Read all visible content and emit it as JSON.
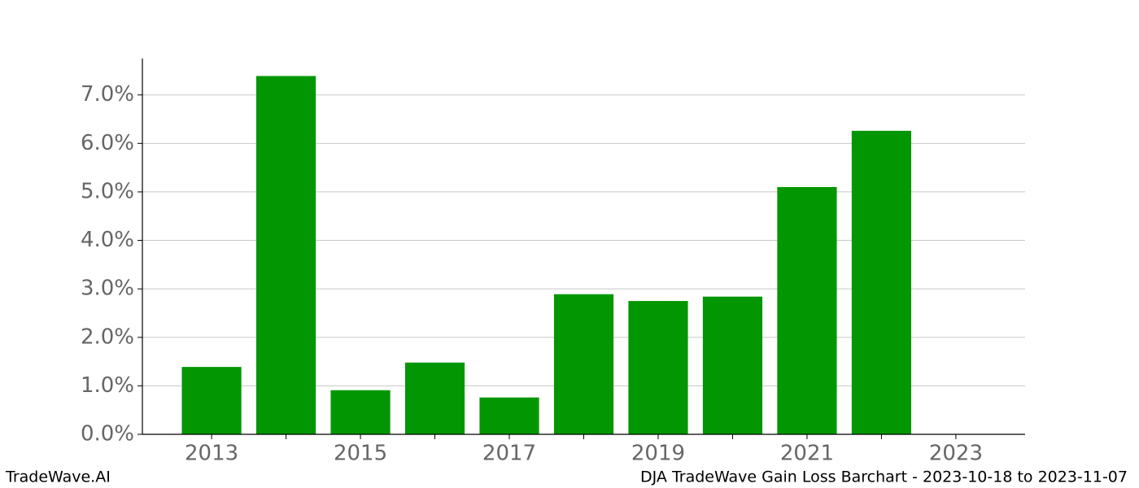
{
  "chart_data": {
    "type": "bar",
    "title": "DJA TradeWave Gain Loss Barchart - 2023-10-18 to 2023-11-07",
    "watermark": "TradeWave.AI",
    "x": [
      2013,
      2014,
      2015,
      2016,
      2017,
      2018,
      2019,
      2020,
      2021,
      2022
    ],
    "values": [
      1.39,
      7.39,
      0.91,
      1.48,
      0.76,
      2.89,
      2.75,
      2.84,
      5.1,
      6.26
    ],
    "color": "#029702",
    "xlim": [
      2012.07,
      2023.93
    ],
    "xticks": [
      2013,
      2015,
      2017,
      2019,
      2021,
      2023
    ],
    "xminorticks": [
      2014,
      2016,
      2018,
      2020,
      2022
    ],
    "ylim": [
      0,
      7.75
    ],
    "yticks": [
      {
        "value": 0,
        "label": "0.0%"
      },
      {
        "value": 1,
        "label": "1.0%"
      },
      {
        "value": 2,
        "label": "2.0%"
      },
      {
        "value": 3,
        "label": "3.0%"
      },
      {
        "value": 4,
        "label": "4.0%"
      },
      {
        "value": 5,
        "label": "5.0%"
      },
      {
        "value": 6,
        "label": "6.0%"
      },
      {
        "value": 7,
        "label": "7.0%"
      }
    ],
    "grid": true
  }
}
